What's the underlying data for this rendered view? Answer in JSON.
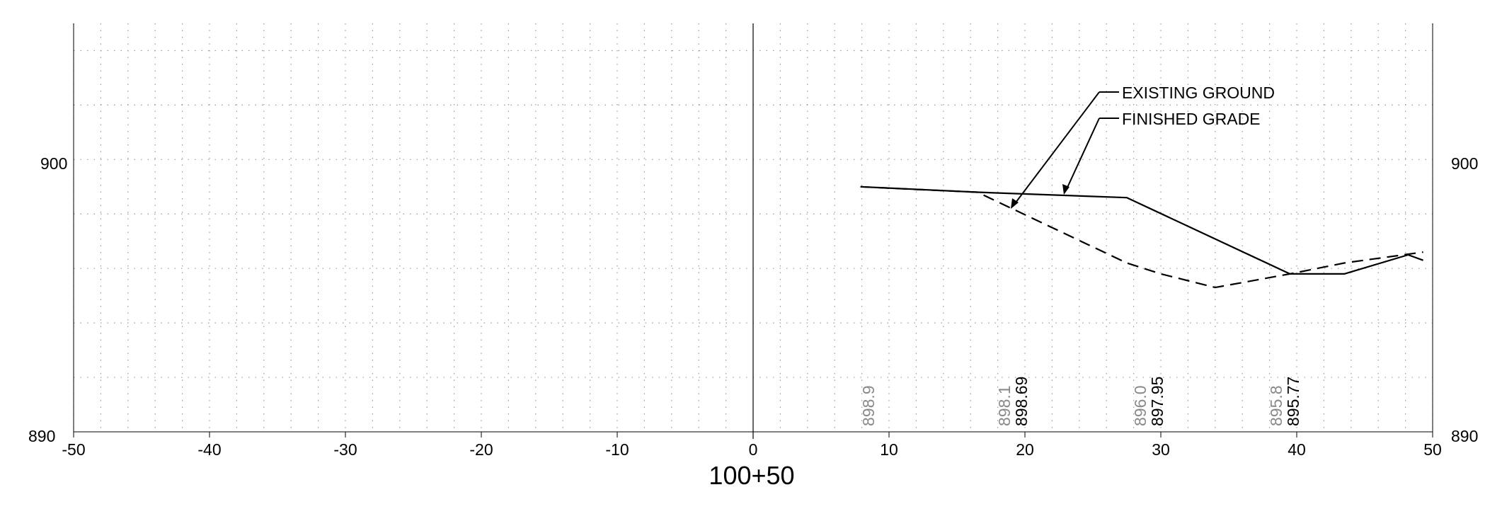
{
  "station_label": "100+50",
  "offset_ticks": [
    "-50",
    "-40",
    "-30",
    "-20",
    "-10",
    "0",
    "10",
    "20",
    "30",
    "40",
    "50"
  ],
  "elevation_ticks": {
    "low": "890",
    "high": "900"
  },
  "leaders": {
    "existing_ground": "EXISTING GROUND",
    "finished_grade": "FINISHED GRADE"
  },
  "chart_data": {
    "type": "line",
    "xlim": [
      -50,
      50
    ],
    "ylim": [
      890,
      905
    ],
    "grid": true,
    "x_major_step": 10,
    "y_minor_step": 2,
    "series": [
      {
        "name": "FINISHED GRADE",
        "style": "solid",
        "color": "#000000",
        "points": [
          [
            7.9,
            899.0
          ],
          [
            16.5,
            898.8
          ],
          [
            27.5,
            898.6
          ],
          [
            39.5,
            895.8
          ],
          [
            43.5,
            895.8
          ],
          [
            48.2,
            896.5
          ],
          [
            49.3,
            896.3
          ]
        ]
      },
      {
        "name": "EXISTING GROUND",
        "style": "dashed",
        "color": "#000000",
        "points": [
          [
            7.9,
            899.0
          ],
          [
            12.0,
            898.9
          ],
          [
            16.5,
            898.8
          ],
          [
            27.5,
            896.2
          ],
          [
            30.0,
            895.8
          ],
          [
            34.0,
            895.3
          ],
          [
            39.5,
            895.8
          ],
          [
            43.5,
            896.2
          ],
          [
            49.3,
            896.6
          ]
        ]
      }
    ],
    "elevation_labels": [
      {
        "offset": 8.9,
        "existing": "898.9",
        "finished": ""
      },
      {
        "offset": 18.9,
        "existing": "898.1",
        "finished": "898.69"
      },
      {
        "offset": 28.9,
        "existing": "896.0",
        "finished": "897.95"
      },
      {
        "offset": 38.9,
        "existing": "895.8",
        "finished": "895.77"
      }
    ],
    "label_colors": {
      "existing": "#8a8a8a",
      "finished": "#000000"
    }
  }
}
